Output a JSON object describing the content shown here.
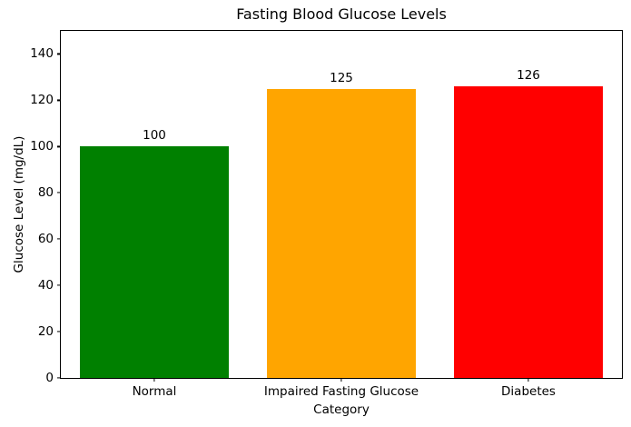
{
  "chart_data": {
    "type": "bar",
    "title": "Fasting Blood Glucose Levels",
    "xlabel": "Category",
    "ylabel": "Glucose Level (mg/dL)",
    "categories": [
      "Normal",
      "Impaired Fasting Glucose",
      "Diabetes"
    ],
    "values": [
      100,
      125,
      126
    ],
    "bar_value_labels": [
      "100",
      "125",
      "126"
    ],
    "bar_colors": [
      "#008000",
      "#ffa500",
      "#ff0000"
    ],
    "ylim": [
      0,
      150
    ],
    "yticks": [
      0,
      20,
      40,
      60,
      80,
      100,
      120,
      140
    ],
    "bar_width_fraction": 0.8,
    "grid": false,
    "legend_position": "none",
    "frame_color": "#000000",
    "background_color": "#ffffff"
  }
}
